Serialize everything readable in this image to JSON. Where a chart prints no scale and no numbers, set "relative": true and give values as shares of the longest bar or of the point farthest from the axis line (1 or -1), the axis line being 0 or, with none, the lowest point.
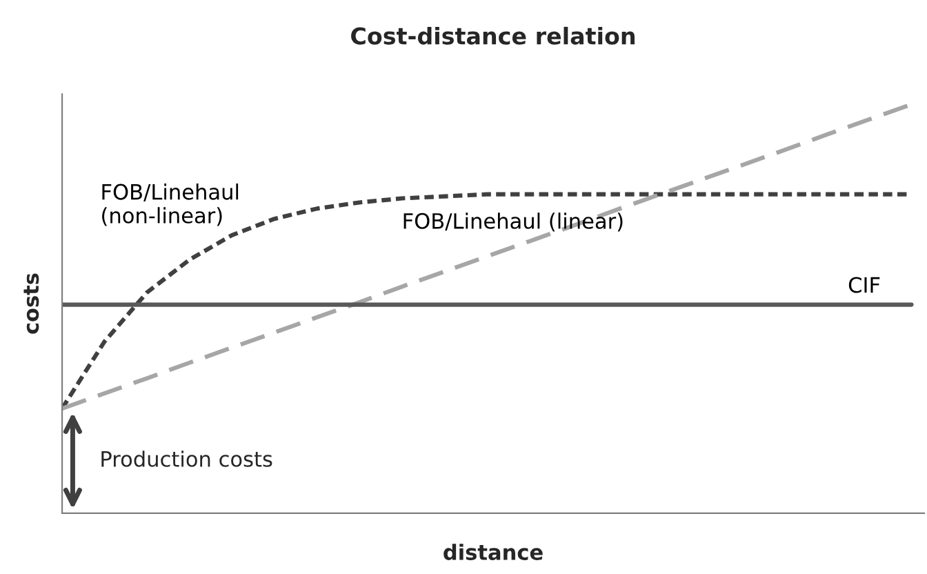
{
  "chart_data": {
    "type": "line",
    "title": "Cost-distance relation",
    "xlabel": "distance",
    "ylabel": "costs",
    "relative": true,
    "legend": false,
    "categories": [
      null,
      null,
      null,
      null,
      null,
      null,
      null,
      null,
      null,
      null,
      null,
      null,
      null,
      null,
      null,
      null,
      null,
      null,
      null,
      null,
      null
    ],
    "series": [
      {
        "name": "FOB/Linehaul\n(non-linear)",
        "color": "#404040",
        "line_style": "dotted",
        "values": [
          0.256,
          0.42,
          0.54,
          0.62,
          0.68,
          0.72,
          0.745,
          0.76,
          0.77,
          0.775,
          0.78,
          0.78,
          0.78,
          0.78,
          0.78,
          0.78,
          0.78,
          0.78,
          0.78,
          0.78,
          0.78
        ]
      },
      {
        "name": "FOB/Linehaul (linear)",
        "color": "#a6a6a6",
        "line_style": "dashed",
        "values": [
          0.256,
          0.293,
          0.33,
          0.368,
          0.405,
          0.442,
          0.479,
          0.516,
          0.554,
          0.591,
          0.628,
          0.665,
          0.702,
          0.74,
          0.777,
          0.814,
          0.851,
          0.888,
          0.926,
          0.963,
          1.0
        ]
      },
      {
        "name": "CIF",
        "color": "#595959",
        "line_style": "solid",
        "values": [
          0.51,
          0.51,
          0.51,
          0.51,
          0.51,
          0.51,
          0.51,
          0.51,
          0.51,
          0.51,
          0.51,
          0.51,
          0.51,
          0.51,
          0.51,
          0.51,
          0.51,
          0.51,
          0.51,
          0.51,
          0.51
        ]
      }
    ],
    "annotations": [
      "Production costs"
    ]
  }
}
